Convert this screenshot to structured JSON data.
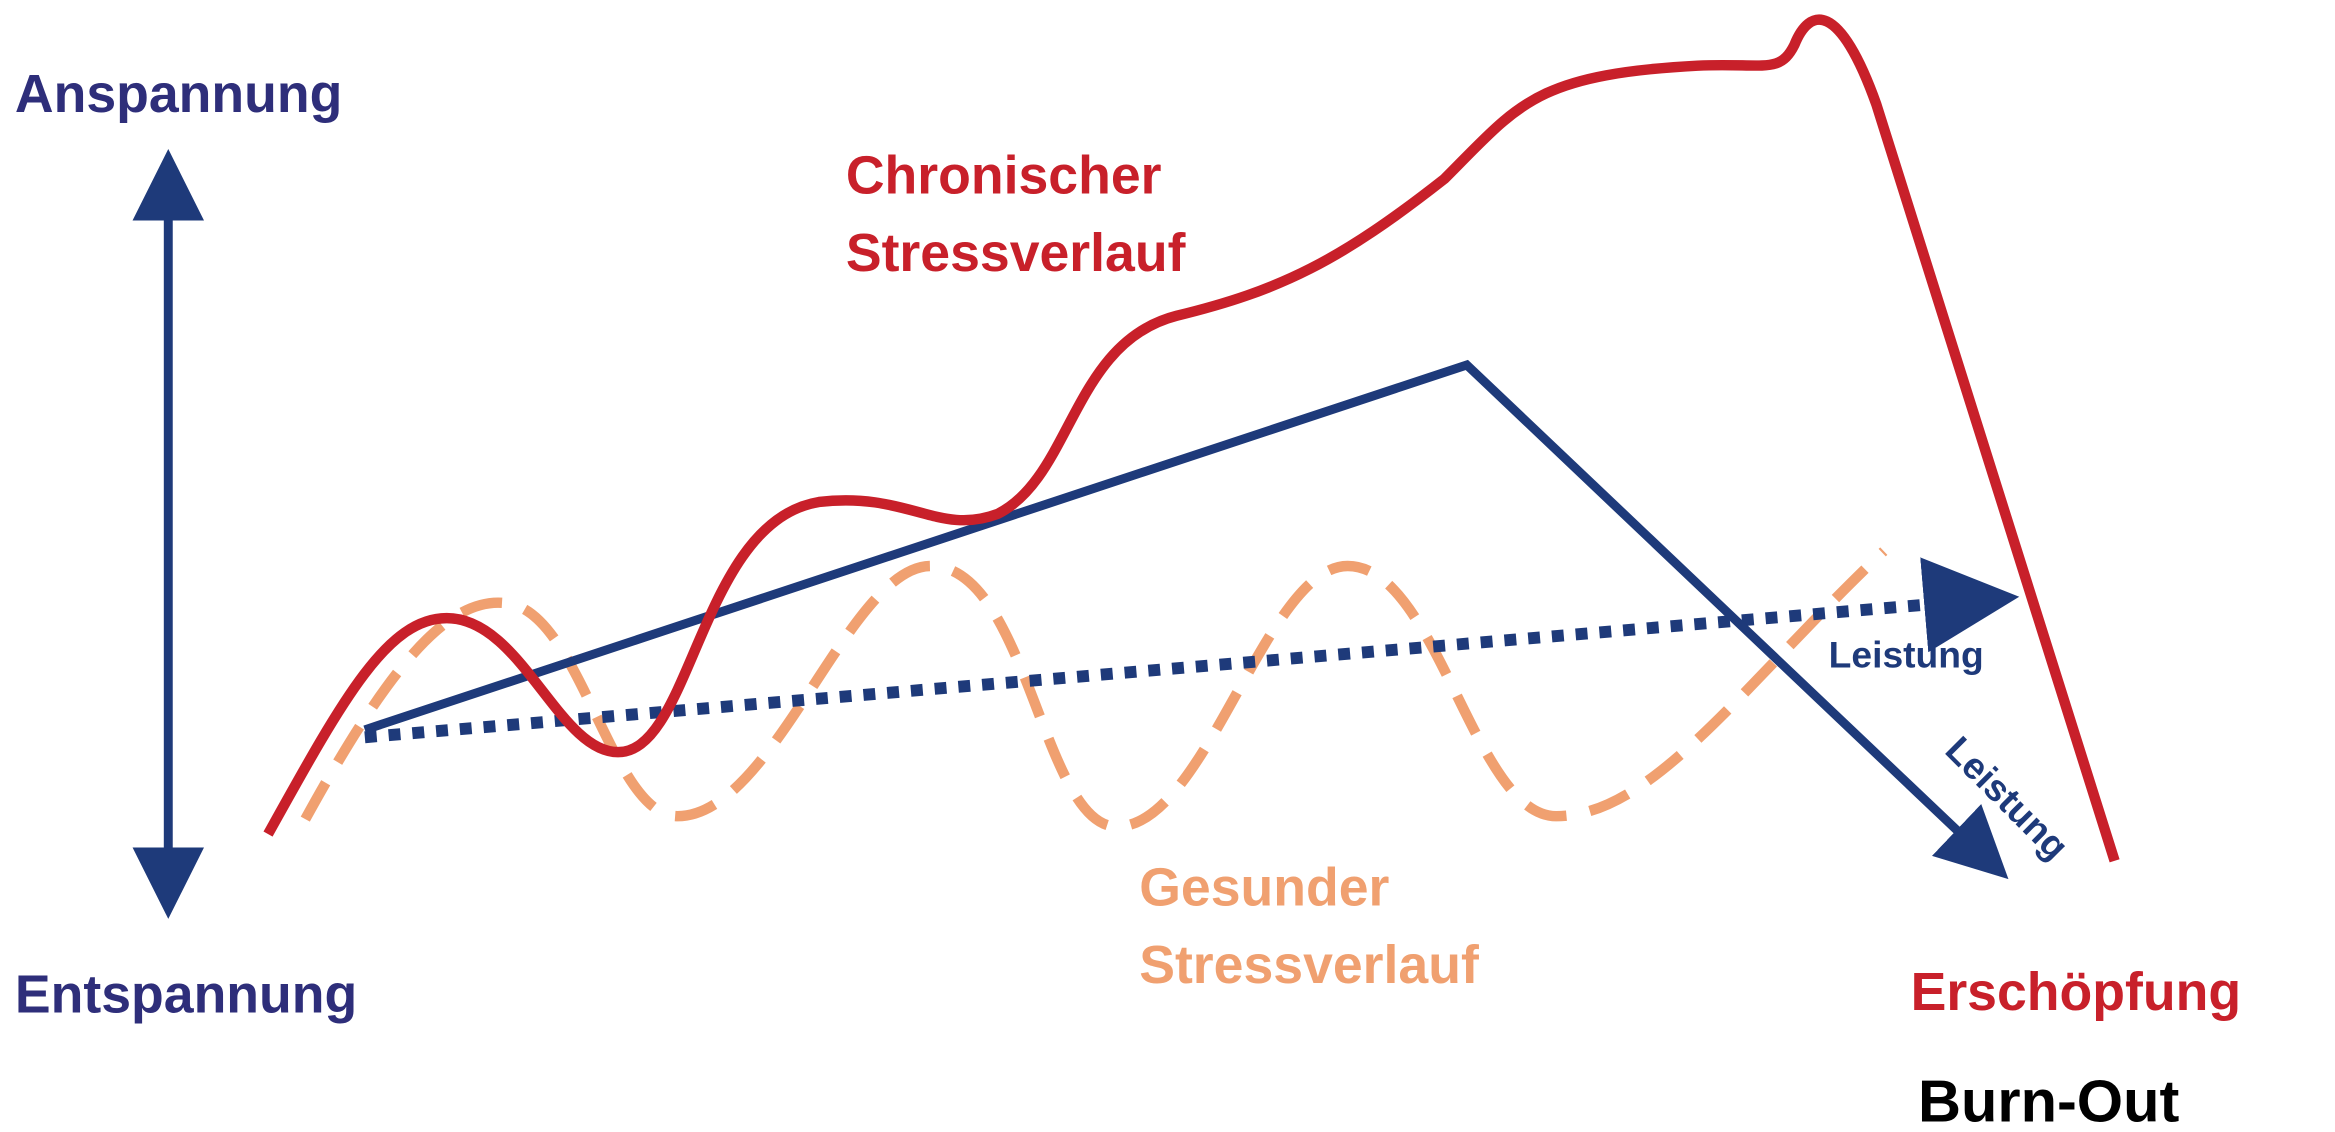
{
  "axis": {
    "top": "Anspannung",
    "bottom": "Entspannung"
  },
  "chronic": {
    "lines": [
      "Chronischer",
      "Stressverlauf"
    ]
  },
  "healthy": {
    "lines": [
      "Gesunder",
      "Stressverlauf"
    ]
  },
  "performance": {
    "rising": "Leistung",
    "falling": "Leistung"
  },
  "end": {
    "state": "Erschöpfung",
    "result": "Burn-Out"
  }
}
